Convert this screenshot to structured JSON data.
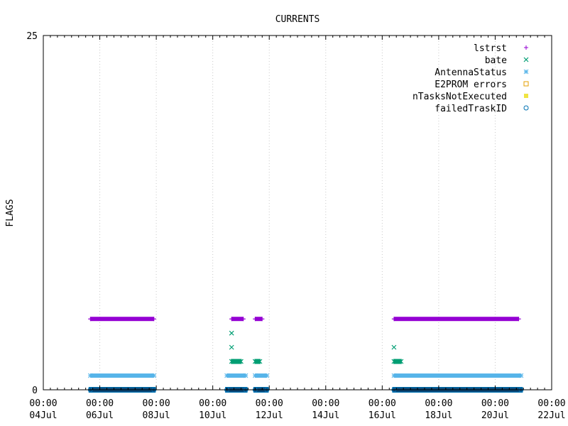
{
  "chart_data": {
    "type": "scatter",
    "title": "CURRENTS",
    "ylabel": "FLAGS",
    "xlabel": "",
    "ylim": [
      0,
      25
    ],
    "y_ticks": [
      "0",
      "25"
    ],
    "x_range": [
      "2024-07-04 00:00",
      "2024-07-22 00:00"
    ],
    "x_ticks": [
      {
        "time": "00:00",
        "date": "04Jul"
      },
      {
        "time": "00:00",
        "date": "06Jul"
      },
      {
        "time": "00:00",
        "date": "08Jul"
      },
      {
        "time": "00:00",
        "date": "10Jul"
      },
      {
        "time": "00:00",
        "date": "12Jul"
      },
      {
        "time": "00:00",
        "date": "14Jul"
      },
      {
        "time": "00:00",
        "date": "16Jul"
      },
      {
        "time": "00:00",
        "date": "18Jul"
      },
      {
        "time": "00:00",
        "date": "20Jul"
      },
      {
        "time": "00:00",
        "date": "22Jul"
      }
    ],
    "grid": "vertical dotted",
    "legend_position": "top-right",
    "series": [
      {
        "name": "lstrst",
        "marker": "plus",
        "color": "#9400d3",
        "segments": [
          {
            "start": "2024-07-05 16:00",
            "end": "2024-07-07 22:00",
            "y": 5
          },
          {
            "start": "2024-07-10 16:00",
            "end": "2024-07-11 02:00",
            "y": 5
          },
          {
            "start": "2024-07-11 12:00",
            "end": "2024-07-11 18:00",
            "y": 5
          },
          {
            "start": "2024-07-16 10:00",
            "end": "2024-07-20 20:00",
            "y": 5
          }
        ],
        "points": []
      },
      {
        "name": "bate",
        "marker": "cross",
        "color": "#009e73",
        "segments": [
          {
            "start": "2024-07-10 16:00",
            "end": "2024-07-11 00:00",
            "y": 2
          },
          {
            "start": "2024-07-11 12:00",
            "end": "2024-07-11 16:00",
            "y": 2
          },
          {
            "start": "2024-07-16 10:00",
            "end": "2024-07-16 16:00",
            "y": 2
          }
        ],
        "points": [
          {
            "x": "2024-07-10 16:00",
            "y": 4
          },
          {
            "x": "2024-07-10 16:00",
            "y": 3
          },
          {
            "x": "2024-07-16 10:00",
            "y": 3
          }
        ]
      },
      {
        "name": "AntennaStatus",
        "marker": "star",
        "color": "#56b4e9",
        "segments": [
          {
            "start": "2024-07-05 16:00",
            "end": "2024-07-07 22:00",
            "y": 1
          },
          {
            "start": "2024-07-10 12:00",
            "end": "2024-07-11 04:00",
            "y": 1
          },
          {
            "start": "2024-07-11 12:00",
            "end": "2024-07-11 22:00",
            "y": 1
          },
          {
            "start": "2024-07-16 10:00",
            "end": "2024-07-20 22:00",
            "y": 1
          }
        ],
        "points": []
      },
      {
        "name": "E2PROM errors",
        "marker": "square-open",
        "color": "#e69f00",
        "segments": [],
        "points": []
      },
      {
        "name": "nTasksNotExecuted",
        "marker": "square-filled",
        "color": "#f0e442",
        "segments": [],
        "points": []
      },
      {
        "name": "failedTraskID",
        "marker": "circle-open",
        "color": "#0072b2",
        "segments": [
          {
            "start": "2024-07-05 16:00",
            "end": "2024-07-07 22:00",
            "y": 0
          },
          {
            "start": "2024-07-10 12:00",
            "end": "2024-07-11 04:00",
            "y": 0
          },
          {
            "start": "2024-07-11 12:00",
            "end": "2024-07-11 22:00",
            "y": 0
          },
          {
            "start": "2024-07-16 10:00",
            "end": "2024-07-20 22:00",
            "y": 0
          }
        ],
        "points": []
      }
    ]
  }
}
